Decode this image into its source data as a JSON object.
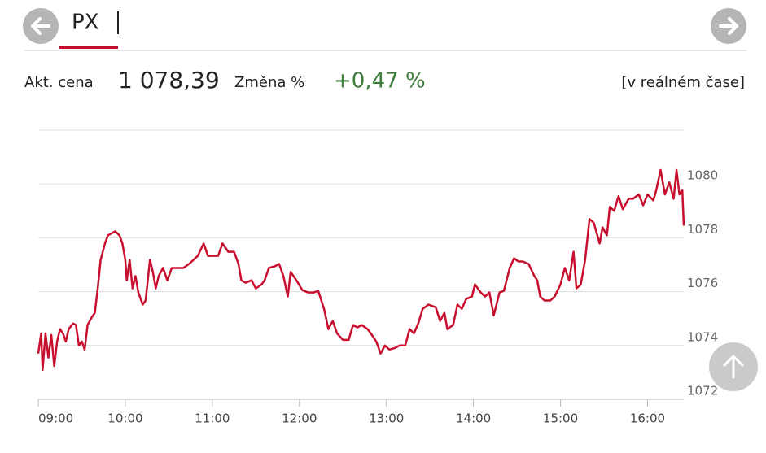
{
  "header": {
    "title": "PX"
  },
  "quote": {
    "price_label": "Akt. cena",
    "price": "1 078,39",
    "change_label": "Změna %",
    "change": "+0,47 %",
    "realtime": "[v reálném čase]"
  },
  "chart_data": {
    "type": "line",
    "color": "#c8102e",
    "x": [
      540,
      542,
      543,
      545,
      547,
      549,
      551,
      553,
      555,
      557,
      559,
      561,
      564,
      566,
      568,
      570,
      572,
      574,
      577,
      579,
      581,
      583,
      586,
      588,
      591,
      593,
      596,
      598,
      600,
      601,
      603,
      605,
      607,
      609,
      612,
      614,
      617,
      619,
      621,
      623,
      626,
      629,
      632,
      634,
      640,
      644,
      647,
      650,
      654,
      657,
      661,
      664,
      667,
      671,
      675,
      678,
      680,
      683,
      687,
      690,
      694,
      696,
      699,
      703,
      706,
      709,
      712,
      714,
      718,
      722,
      726,
      730,
      733,
      737,
      740,
      743,
      746,
      750,
      754,
      757,
      760,
      763,
      767,
      770,
      773,
      776,
      779,
      782,
      786,
      789,
      793,
      796,
      799,
      802,
      805,
      809,
      814,
      817,
      820,
      822,
      826,
      829,
      832,
      835,
      839,
      841,
      845,
      848,
      851,
      854,
      858,
      861,
      865,
      868,
      871,
      874,
      878,
      882,
      884,
      886,
      889,
      893,
      896,
      900,
      903,
      906,
      909,
      911,
      914,
      917,
      920,
      923,
      927,
      929,
      932,
      934,
      937,
      940,
      943,
      947,
      950,
      954,
      957,
      960,
      964,
      966,
      969,
      972,
      975,
      978,
      980,
      982,
      984,
      985
    ],
    "values": [
      1073.7,
      1074.45,
      1073.09,
      1074.45,
      1073.55,
      1074.39,
      1073.24,
      1074.15,
      1074.61,
      1074.45,
      1074.15,
      1074.61,
      1074.82,
      1074.76,
      1074.0,
      1074.15,
      1073.85,
      1074.76,
      1075.06,
      1075.21,
      1076.12,
      1077.18,
      1077.79,
      1078.09,
      1078.18,
      1078.24,
      1078.09,
      1077.79,
      1077.18,
      1076.42,
      1077.18,
      1076.12,
      1076.58,
      1075.97,
      1075.52,
      1075.67,
      1077.18,
      1076.73,
      1076.12,
      1076.58,
      1076.88,
      1076.42,
      1076.88,
      1076.88,
      1076.88,
      1077.03,
      1077.18,
      1077.33,
      1077.79,
      1077.33,
      1077.33,
      1077.33,
      1077.79,
      1077.48,
      1077.48,
      1077.03,
      1076.42,
      1076.33,
      1076.42,
      1076.12,
      1076.27,
      1076.42,
      1076.88,
      1076.94,
      1077.03,
      1076.58,
      1075.82,
      1076.73,
      1076.42,
      1076.06,
      1075.97,
      1075.97,
      1076.03,
      1075.36,
      1074.61,
      1074.91,
      1074.45,
      1074.21,
      1074.21,
      1074.76,
      1074.67,
      1074.76,
      1074.61,
      1074.39,
      1074.15,
      1073.7,
      1074.0,
      1073.85,
      1073.91,
      1074.0,
      1074.0,
      1074.61,
      1074.45,
      1074.82,
      1075.36,
      1075.52,
      1075.42,
      1074.91,
      1075.21,
      1074.61,
      1074.76,
      1075.52,
      1075.36,
      1075.73,
      1075.82,
      1076.27,
      1075.97,
      1075.82,
      1075.97,
      1075.12,
      1075.97,
      1076.03,
      1076.88,
      1077.24,
      1077.12,
      1077.12,
      1077.03,
      1076.58,
      1076.42,
      1075.82,
      1075.67,
      1075.67,
      1075.82,
      1076.27,
      1076.88,
      1076.42,
      1077.48,
      1076.12,
      1076.27,
      1077.18,
      1078.7,
      1078.55,
      1077.79,
      1078.39,
      1078.09,
      1079.15,
      1079.0,
      1079.55,
      1079.06,
      1079.45,
      1079.45,
      1079.61,
      1079.21,
      1079.61,
      1079.39,
      1079.76,
      1080.52,
      1079.61,
      1080.06,
      1079.45,
      1080.52,
      1079.61,
      1079.76,
      1078.45
    ],
    "xlim": [
      540,
      985
    ],
    "xticks": [
      {
        "value": 540,
        "label": "09:00"
      },
      {
        "value": 600,
        "label": "10:00"
      },
      {
        "value": 660,
        "label": "11:00"
      },
      {
        "value": 720,
        "label": "12:00"
      },
      {
        "value": 780,
        "label": "13:00"
      },
      {
        "value": 840,
        "label": "14:00"
      },
      {
        "value": 900,
        "label": "15:00"
      },
      {
        "value": 960,
        "label": "16:00"
      }
    ],
    "ylim": [
      1072,
      1082
    ],
    "yticks": [
      1072,
      1074,
      1076,
      1078,
      1080
    ],
    "grid": true
  }
}
